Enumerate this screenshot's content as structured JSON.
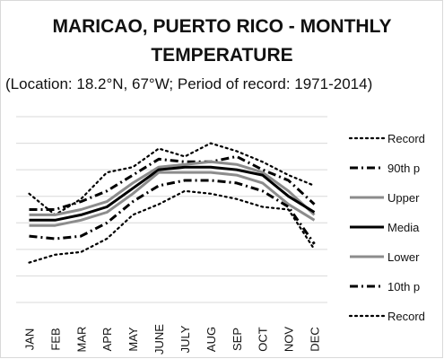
{
  "title_line1": "MARICAO, PUERTO RICO - MONTHLY",
  "title_line2": "TEMPERATURE",
  "subtitle": "(Location: 18.2°N, 67°W; Period of record: 1971-2014)",
  "chart_data": {
    "type": "line",
    "categories": [
      "JAN",
      "FEB",
      "MAR",
      "APR",
      "MAY",
      "JUNE",
      "JULY",
      "AUG",
      "SEP",
      "OCT",
      "NOV",
      "DEC"
    ],
    "ylim": [
      0,
      7
    ],
    "grid": true,
    "legend_position": "right",
    "series": [
      {
        "name": "Record",
        "style": "dotted",
        "color": "#000000",
        "values": [
          4.1,
          3.3,
          3.9,
          4.9,
          5.1,
          5.8,
          5.5,
          6.0,
          5.7,
          5.3,
          4.8,
          4.4
        ]
      },
      {
        "name": "90th p",
        "style": "dashdot",
        "color": "#000000",
        "values": [
          3.5,
          3.5,
          3.8,
          4.2,
          4.8,
          5.4,
          5.3,
          5.3,
          5.5,
          5.0,
          4.6,
          3.7
        ]
      },
      {
        "name": "Upper",
        "style": "solid",
        "color": "#8c8c8c",
        "values": [
          3.3,
          3.3,
          3.5,
          3.8,
          4.5,
          5.1,
          5.2,
          5.3,
          5.2,
          4.9,
          4.2,
          3.3
        ]
      },
      {
        "name": "Media",
        "style": "solid",
        "color": "#000000",
        "values": [
          3.1,
          3.1,
          3.3,
          3.6,
          4.3,
          5.0,
          5.1,
          5.1,
          5.0,
          4.8,
          4.0,
          3.4
        ]
      },
      {
        "name": "Lower",
        "style": "solid",
        "color": "#8c8c8c",
        "values": [
          2.9,
          2.9,
          3.1,
          3.4,
          4.1,
          4.9,
          4.9,
          4.9,
          4.8,
          4.5,
          3.7,
          3.1
        ]
      },
      {
        "name": "10th p",
        "style": "dashdot",
        "color": "#000000",
        "values": [
          2.5,
          2.4,
          2.5,
          3.0,
          3.8,
          4.4,
          4.6,
          4.6,
          4.5,
          4.2,
          3.6,
          2.2
        ]
      },
      {
        "name": "Record",
        "style": "dotted",
        "color": "#000000",
        "values": [
          1.5,
          1.8,
          1.9,
          2.4,
          3.3,
          3.7,
          4.2,
          4.1,
          3.9,
          3.6,
          3.5,
          2.0
        ]
      }
    ]
  }
}
